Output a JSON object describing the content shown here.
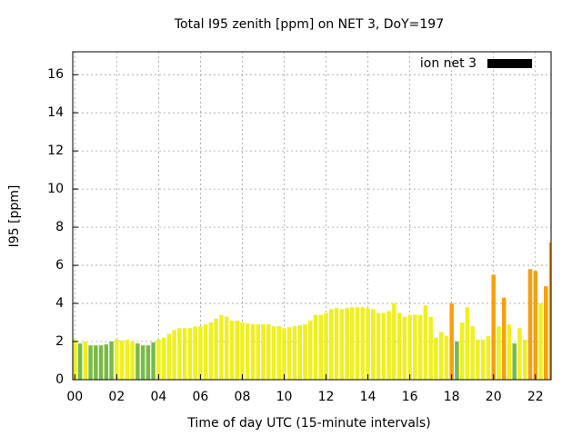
{
  "chart_data": {
    "type": "bar",
    "title": "Total I95 zenith [ppm] on NET 3, DoY=197",
    "x_label": "Time of day UTC (15-minute intervals)",
    "y_label": "I95 [ppm]",
    "legend": "ion net 3",
    "legend_color": "#000000",
    "x": [
      0,
      0.25,
      0.5,
      0.75,
      1,
      1.25,
      1.5,
      1.75,
      2,
      2.25,
      2.5,
      2.75,
      3,
      3.25,
      3.5,
      3.75,
      4,
      4.25,
      4.5,
      4.75,
      5,
      5.25,
      5.5,
      5.75,
      6,
      6.25,
      6.5,
      6.75,
      7,
      7.25,
      7.5,
      7.75,
      8,
      8.25,
      8.5,
      8.75,
      9,
      9.25,
      9.5,
      9.75,
      10,
      10.25,
      10.5,
      10.75,
      11,
      11.25,
      11.5,
      11.75,
      12,
      12.25,
      12.5,
      12.75,
      13,
      13.25,
      13.5,
      13.75,
      14,
      14.25,
      14.5,
      14.75,
      15,
      15.25,
      15.5,
      15.75,
      16,
      16.25,
      16.5,
      16.75,
      17,
      17.25,
      17.5,
      17.75,
      18,
      18.25,
      18.5,
      18.75,
      19,
      19.25,
      19.5,
      19.75,
      20,
      20.25,
      20.5,
      20.75,
      21,
      21.25,
      21.5,
      21.75,
      22,
      22.25,
      22.5,
      22.75
    ],
    "values": [
      2.1,
      1.9,
      2.0,
      1.8,
      1.8,
      1.8,
      1.85,
      2.0,
      2.1,
      2.05,
      2.1,
      2.0,
      1.9,
      1.8,
      1.8,
      1.95,
      2.1,
      2.2,
      2.4,
      2.6,
      2.7,
      2.7,
      2.7,
      2.8,
      2.8,
      2.9,
      3.0,
      3.2,
      3.4,
      3.3,
      3.1,
      3.1,
      3.0,
      2.95,
      2.9,
      2.9,
      2.9,
      2.9,
      2.8,
      2.8,
      2.7,
      2.75,
      2.8,
      2.85,
      2.9,
      3.1,
      3.4,
      3.4,
      3.5,
      3.7,
      3.75,
      3.7,
      3.75,
      3.8,
      3.8,
      3.8,
      3.75,
      3.7,
      3.5,
      3.5,
      3.6,
      4.0,
      3.5,
      3.3,
      3.4,
      3.4,
      3.4,
      3.9,
      3.3,
      2.2,
      2.5,
      2.3,
      4.0,
      2.0,
      3.0,
      3.8,
      2.8,
      2.1,
      2.1,
      2.3,
      5.5,
      2.8,
      4.3,
      2.9,
      1.9,
      2.7,
      2.1,
      5.8,
      5.7,
      4.0,
      4.9,
      7.2
    ],
    "colors": [
      "#f0f01e",
      "#77bb44",
      "#f0f01e",
      "#77bb44",
      "#77bb44",
      "#77bb44",
      "#77bb44",
      "#77bb44",
      "#f0f01e",
      "#f0f01e",
      "#f0f01e",
      "#f0f01e",
      "#77bb44",
      "#77bb44",
      "#77bb44",
      "#77bb44",
      "#f0f01e",
      "#f0f01e",
      "#f0f01e",
      "#f0f01e",
      "#f0f01e",
      "#f0f01e",
      "#f0f01e",
      "#f0f01e",
      "#f0f01e",
      "#f0f01e",
      "#f0f01e",
      "#f0f01e",
      "#f0f01e",
      "#f0f01e",
      "#f0f01e",
      "#f0f01e",
      "#f0f01e",
      "#f0f01e",
      "#f0f01e",
      "#f0f01e",
      "#f0f01e",
      "#f0f01e",
      "#f0f01e",
      "#f0f01e",
      "#f0f01e",
      "#f0f01e",
      "#f0f01e",
      "#f0f01e",
      "#f0f01e",
      "#f0f01e",
      "#f0f01e",
      "#f0f01e",
      "#f0f01e",
      "#f0f01e",
      "#f0f01e",
      "#f0f01e",
      "#f0f01e",
      "#f0f01e",
      "#f0f01e",
      "#f0f01e",
      "#f0f01e",
      "#f0f01e",
      "#f0f01e",
      "#f0f01e",
      "#f0f01e",
      "#f0f01e",
      "#f0f01e",
      "#f0f01e",
      "#f0f01e",
      "#f0f01e",
      "#f0f01e",
      "#f0f01e",
      "#f0f01e",
      "#f0f01e",
      "#f0f01e",
      "#f0f01e",
      "#f5a010",
      "#77bb44",
      "#f0f01e",
      "#f0f01e",
      "#f0f01e",
      "#f0f01e",
      "#f0f01e",
      "#f0f01e",
      "#f5a010",
      "#f0f01e",
      "#f5a010",
      "#f0f01e",
      "#77bb44",
      "#f0f01e",
      "#f0f01e",
      "#f5a010",
      "#f5a010",
      "#f0f01e",
      "#f5a010",
      "#f5a010"
    ],
    "xlim": [
      -0.1,
      22.75
    ],
    "xticks": [
      {
        "value": 0,
        "label": "00"
      },
      {
        "value": 2,
        "label": "02"
      },
      {
        "value": 4,
        "label": "04"
      },
      {
        "value": 6,
        "label": "06"
      },
      {
        "value": 8,
        "label": "08"
      },
      {
        "value": 10,
        "label": "10"
      },
      {
        "value": 12,
        "label": "12"
      },
      {
        "value": 14,
        "label": "14"
      },
      {
        "value": 16,
        "label": "16"
      },
      {
        "value": 18,
        "label": "18"
      },
      {
        "value": 20,
        "label": "20"
      },
      {
        "value": 22,
        "label": "22"
      }
    ],
    "ylim": [
      0,
      17.2
    ],
    "yticks": [
      0,
      2,
      4,
      6,
      8,
      10,
      12,
      14,
      16
    ],
    "grid": true
  }
}
